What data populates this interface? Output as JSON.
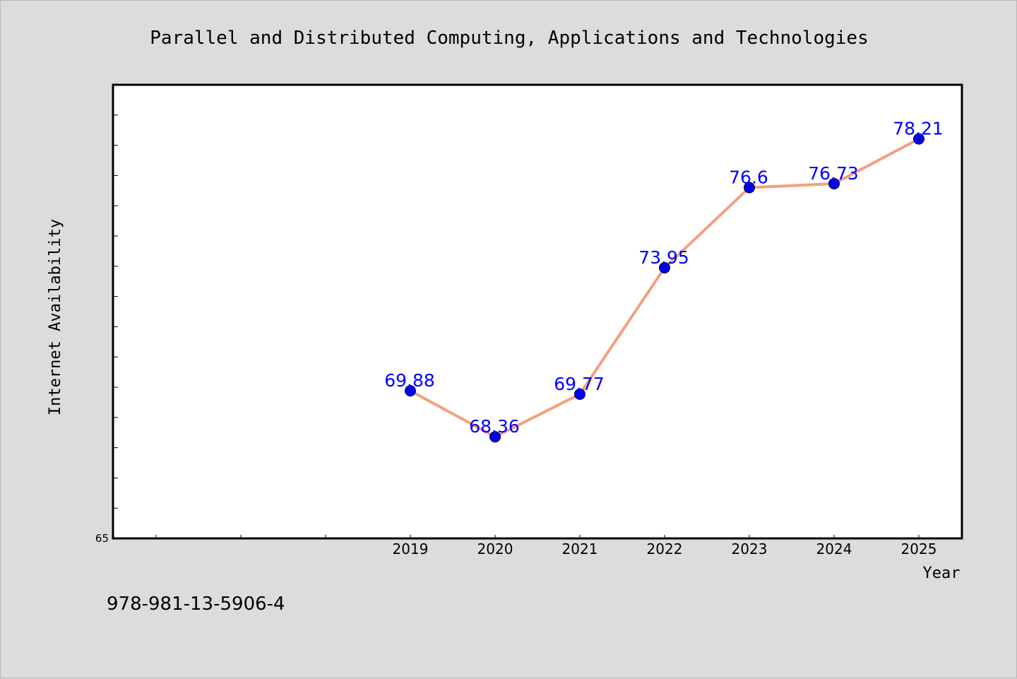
{
  "colors": {
    "background": "#dcdcdc",
    "plot_background": "#ffffff",
    "line": "#f4a07e",
    "marker": "#0000ee",
    "data_label": "#0000ff"
  },
  "footer": {
    "isbn": "978-981-13-5906-4"
  },
  "chart_data": {
    "type": "line",
    "title": "Parallel and Distributed Computing, Applications and Technologies",
    "xlabel": "Year",
    "ylabel": "Internet Availability",
    "categories": [
      "2019",
      "2020",
      "2021",
      "2022",
      "2023",
      "2024",
      "2025"
    ],
    "series": [
      {
        "values": [
          69.88,
          68.36,
          69.77,
          73.95,
          76.6,
          76.73,
          78.21
        ]
      }
    ],
    "y_tick_labels": [
      "65"
    ],
    "ylim": [
      65,
      80
    ],
    "grid": false,
    "legend": "none"
  }
}
